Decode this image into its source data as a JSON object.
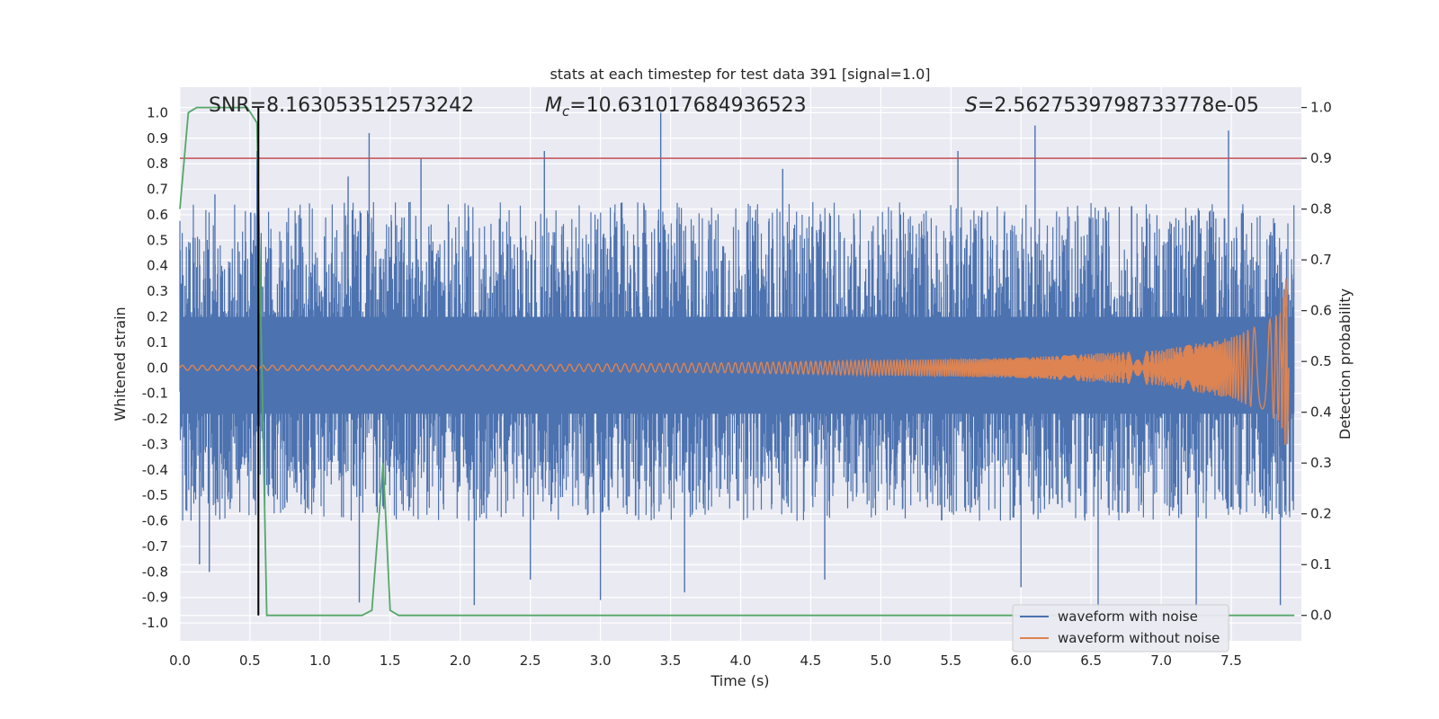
{
  "chart_data": {
    "type": "line",
    "title": "stats at each timestep for test data 391 [signal=1.0]",
    "xlabel": "Time (s)",
    "ylabel": "Whitened strain",
    "y2label": "Detection probability",
    "xlim": [
      0.0,
      8.0
    ],
    "ylim": [
      -1.07,
      1.1
    ],
    "y2lim": [
      -0.05,
      1.04
    ],
    "xticks": [
      "0.0",
      "0.5",
      "1.0",
      "1.5",
      "2.0",
      "2.5",
      "3.0",
      "3.5",
      "4.0",
      "4.5",
      "5.0",
      "5.5",
      "6.0",
      "6.5",
      "7.0",
      "7.5"
    ],
    "yticks": [
      "-1.0",
      "-0.9",
      "-0.8",
      "-0.7",
      "-0.6",
      "-0.5",
      "-0.4",
      "-0.3",
      "-0.2",
      "-0.1",
      "0.0",
      "0.1",
      "0.2",
      "0.3",
      "0.4",
      "0.5",
      "0.6",
      "0.7",
      "0.8",
      "0.9",
      "1.0"
    ],
    "y2ticks": [
      "0.0",
      "0.1",
      "0.2",
      "0.3",
      "0.4",
      "0.5",
      "0.6",
      "0.7",
      "0.8",
      "0.9",
      "1.0"
    ],
    "annotations": {
      "snr": "SNR=8.163053512573242",
      "mc_symbol": "M",
      "mc_sub": "c",
      "mc_value": "=10.631017684936523",
      "s_symbol": "S",
      "s_value": "=2.5627539798733778e-05"
    },
    "threshold": {
      "value": 0.9,
      "axis": "right",
      "color": "#c44e52"
    },
    "detection_marker": {
      "x": 0.56,
      "color": "#000000"
    },
    "series": [
      {
        "name": "waveform with noise",
        "axis": "left",
        "color": "#4c72b0",
        "description": "dense noisy strain, envelope approx ±0.5 with spikes to ±1.0",
        "envelope": {
          "x_start": 0.0,
          "x_end": 8.0,
          "typical_low": -0.4,
          "typical_high": 0.45
        },
        "spikes": [
          {
            "x": 0.14,
            "y": -0.77
          },
          {
            "x": 0.21,
            "y": -0.8
          },
          {
            "x": 0.25,
            "y": 0.68
          },
          {
            "x": 0.55,
            "y": 0.85
          },
          {
            "x": 1.2,
            "y": 0.75
          },
          {
            "x": 1.35,
            "y": 0.92
          },
          {
            "x": 1.72,
            "y": 0.82
          },
          {
            "x": 1.28,
            "y": -0.92
          },
          {
            "x": 2.1,
            "y": -0.93
          },
          {
            "x": 2.6,
            "y": 0.85
          },
          {
            "x": 2.5,
            "y": -0.83
          },
          {
            "x": 3.0,
            "y": -0.91
          },
          {
            "x": 3.43,
            "y": 1.0
          },
          {
            "x": 3.6,
            "y": -0.88
          },
          {
            "x": 4.3,
            "y": 0.78
          },
          {
            "x": 4.6,
            "y": -0.83
          },
          {
            "x": 5.55,
            "y": 0.85
          },
          {
            "x": 6.0,
            "y": -0.86
          },
          {
            "x": 6.1,
            "y": 0.95
          },
          {
            "x": 6.55,
            "y": -0.95
          },
          {
            "x": 7.25,
            "y": -0.95
          },
          {
            "x": 7.48,
            "y": 0.93
          },
          {
            "x": 7.85,
            "y": -0.93
          }
        ]
      },
      {
        "name": "waveform without noise",
        "axis": "left",
        "color": "#dd8452",
        "description": "chirp waveform, amplitude grows toward merger",
        "points": [
          {
            "x": 0.0,
            "amp": 0.01
          },
          {
            "x": 2.0,
            "amp": 0.01
          },
          {
            "x": 4.0,
            "amp": 0.02
          },
          {
            "x": 6.0,
            "amp": 0.04
          },
          {
            "x": 7.0,
            "amp": 0.07
          },
          {
            "x": 7.5,
            "amp": 0.12
          },
          {
            "x": 7.75,
            "amp": 0.18
          },
          {
            "x": 7.85,
            "amp": 0.22
          },
          {
            "x": 7.9,
            "amp": 0.35
          }
        ]
      },
      {
        "name": "detection probability",
        "axis": "right",
        "color": "#55a868",
        "x": [
          0.0,
          0.06,
          0.12,
          0.18,
          0.48,
          0.55,
          0.62,
          1.3,
          1.37,
          1.45,
          1.5,
          1.56,
          7.95
        ],
        "values": [
          0.8,
          0.99,
          1.0,
          1.0,
          1.0,
          0.97,
          0.0,
          0.0,
          0.01,
          0.3,
          0.01,
          0.0,
          0.0
        ]
      }
    ],
    "legend": {
      "placement": "lower right",
      "entries": [
        "waveform with noise",
        "waveform without noise"
      ]
    }
  }
}
